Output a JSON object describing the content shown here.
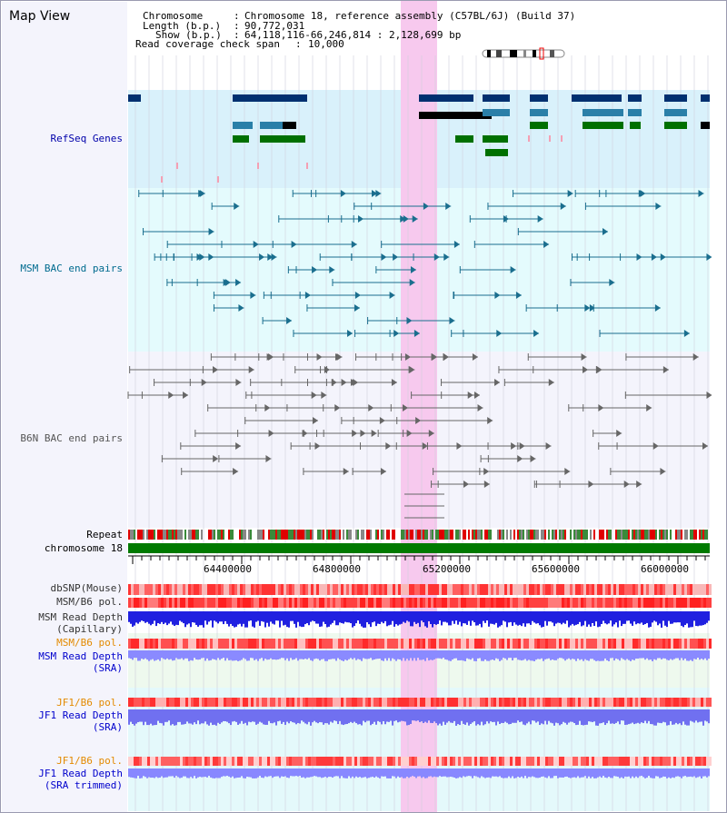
{
  "header": {
    "view_title": "Map View",
    "chromosome_label": "Chromosome",
    "chromosome_value": "Chromosome 18, reference assembly (C57BL/6J) (Build 37)",
    "length_label": "Length (b.p.)",
    "length_value": "90,772,031",
    "show_label": "Show (b.p.)",
    "show_value": "64,118,116-66,246,814 : 2,128,699 bp",
    "coverage_label": "Read coverage check span",
    "coverage_value": "10,000"
  },
  "tracks": {
    "refseq": "RefSeq Genes",
    "msm_bac": "MSM BAC end pairs",
    "b6n_bac": "B6N BAC end pairs",
    "repeat": "Repeat",
    "chromosome": "chromosome 18",
    "dbsnp": "dbSNP(Mouse)",
    "msm_b6_pol": "MSM/B6 pol.",
    "msm_read_depth_cap_1": "MSM Read Depth",
    "msm_read_depth_cap_2": "(Capillary)",
    "msm_b6_pol_2": "MSM/B6 pol.",
    "msm_read_depth_sra_1": "MSM Read Depth",
    "msm_read_depth_sra_2": "(SRA)",
    "jf1_b6_pol": "JF1/B6 pol.",
    "jf1_read_depth_sra_1": "JF1 Read Depth",
    "jf1_read_depth_sra_2": "(SRA)",
    "jf1_b6_pol_2": "JF1/B6 pol.",
    "jf1_read_depth_trim_1": "JF1 Read Depth",
    "jf1_read_depth_trim_2": "(SRA trimmed)"
  },
  "axis": {
    "ticks": [
      "64400000",
      "64800000",
      "65200000",
      "65600000",
      "66000000"
    ]
  },
  "colors": {
    "refseq_label": "#0000aa",
    "msm_label": "#006b8f",
    "b6n_label": "#555555",
    "orange_label": "#e38a00",
    "blue_label": "#0000cc",
    "highlight": "#f7c9ee",
    "refseq_bg": "#d9f1fb",
    "msm_bg": "#e4fbfd",
    "b6n_bg": "#f4f4fc"
  }
}
